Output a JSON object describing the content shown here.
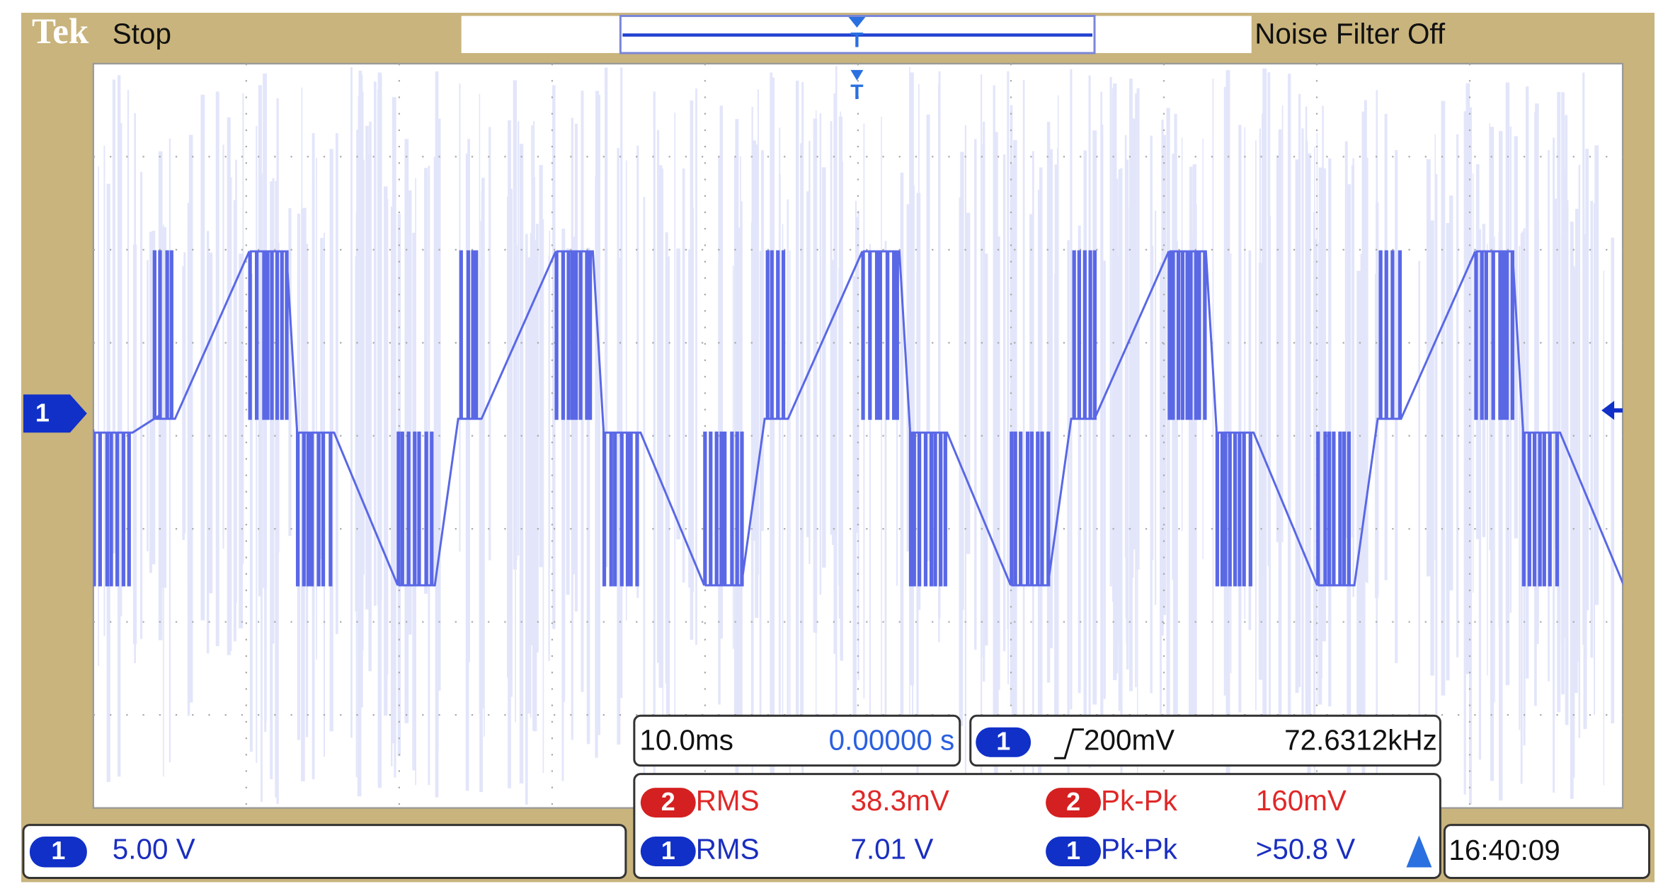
{
  "header": {
    "brand": "Tek",
    "status": "Stop",
    "noise_filter": "Noise Filter Off"
  },
  "channel_marker": "1",
  "timebase": {
    "scale": "10.0ms",
    "position": "0.00000 s"
  },
  "trigger": {
    "channel": "1",
    "level": "200mV",
    "frequency": "72.6312kHz"
  },
  "measurements": [
    {
      "channel": "2",
      "type": "RMS",
      "value": "38.3mV"
    },
    {
      "channel": "2",
      "type": "Pk-Pk",
      "value": "160mV"
    },
    {
      "channel": "1",
      "type": "RMS",
      "value": "7.01 V"
    },
    {
      "channel": "1",
      "type": "Pk-Pk",
      "value": ">50.8 V"
    }
  ],
  "clock": "16:40:09",
  "channel_scale": {
    "channel": "1",
    "value": "5.00 V"
  }
}
